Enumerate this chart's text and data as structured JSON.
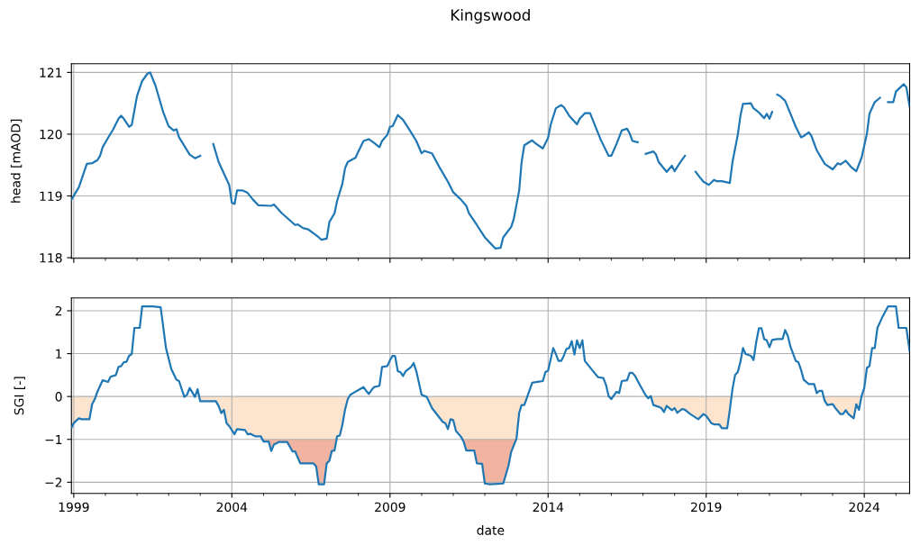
{
  "chart_data": [
    {
      "type": "line",
      "title": "Kingswood",
      "ylabel": "head [mAOD]",
      "grid": true,
      "tick_labels": "y",
      "xlim": [
        "1998-12-05",
        "2025-06-08"
      ],
      "ylim": [
        117.99,
        121.14
      ],
      "yticks": [
        118,
        119,
        120,
        121
      ],
      "series": [
        {
          "color": "#1f77b4",
          "x": [
            "1998-12-05",
            "1999-03",
            "1999-06",
            "1999-08",
            "1999-10",
            "1999-11",
            "1999-12",
            "2000-02",
            "2000-04",
            "2000-06",
            "2000-07",
            "2000-08",
            "2000-10",
            "2000-11",
            "2001-01",
            "2001-03",
            "2001-05",
            "2001-06",
            "2001-08",
            "2001-11",
            "2002-01",
            "2002-03",
            "2002-04",
            "2002-05",
            "2002-09",
            "2002-11",
            "2003-01",
            "2003-03",
            "2003-06",
            "2003-08",
            "2003-12",
            "2004-01",
            "2004-02",
            "2004-03",
            "2004-05",
            "2004-07",
            "2004-09",
            "2004-11",
            "2005-04",
            "2005-05",
            "2005-08",
            "2006-01",
            "2006-02",
            "2006-04",
            "2006-06",
            "2006-10",
            "2006-11",
            "2007-01",
            "2007-02",
            "2007-04",
            "2007-05",
            "2007-07",
            "2007-08",
            "2007-09",
            "2007-12",
            "2008-01",
            "2008-03",
            "2008-05",
            "2008-07",
            "2008-09",
            "2008-10",
            "2008-12",
            "2009-01",
            "2009-02",
            "2009-04",
            "2009-06",
            "2009-09",
            "2009-11",
            "2010-01",
            "2010-02",
            "2010-05",
            "2010-08",
            "2010-11",
            "2011-01",
            "2011-04",
            "2011-06",
            "2011-07",
            "2011-10",
            "2012-01",
            "2012-03",
            "2012-05",
            "2012-07",
            "2012-08",
            "2012-11",
            "2012-12",
            "2013-02",
            "2013-03",
            "2013-04",
            "2013-07",
            "2013-08",
            "2013-11",
            "2014-01",
            "2014-02",
            "2014-04",
            "2014-06",
            "2014-07",
            "2014-09",
            "2014-12",
            "2015-01",
            "2015-03",
            "2015-05",
            "2015-06",
            "2015-09",
            "2015-12",
            "2016-01",
            "2016-03",
            "2016-05",
            "2016-07",
            "2016-08",
            "2016-09",
            "2016-11",
            "2016-12",
            "2017-02",
            "2017-05",
            "2017-06",
            "2017-07",
            "2017-10",
            "2017-12",
            "2018-01",
            "2018-03",
            "2018-05",
            "2018-07",
            "2018-09",
            "2018-11",
            "2018-12",
            "2019-02",
            "2019-04",
            "2019-05",
            "2019-07",
            "2019-10",
            "2019-11",
            "2020-01",
            "2020-02",
            "2020-03",
            "2020-06",
            "2020-07",
            "2020-09",
            "2020-11",
            "2020-12",
            "2021-01",
            "2021-02",
            "2021-03",
            "2021-04",
            "2021-05",
            "2021-07",
            "2021-09",
            "2021-11",
            "2022-01",
            "2022-02",
            "2022-04",
            "2022-05",
            "2022-07",
            "2022-10",
            "2023-01",
            "2023-03",
            "2023-04",
            "2023-06",
            "2023-08",
            "2023-10",
            "2023-12",
            "2024-02",
            "2024-03",
            "2024-05",
            "2024-07",
            "2024-08",
            "2024-10",
            "2024-12",
            "2025-01",
            "2025-04",
            "2025-05",
            "2025-06-08"
          ],
          "values": [
            118.94,
            119.14,
            119.52,
            119.53,
            119.58,
            119.65,
            119.79,
            119.94,
            120.08,
            120.25,
            120.3,
            120.25,
            120.12,
            120.15,
            120.62,
            120.86,
            120.98,
            121.0,
            120.79,
            120.35,
            120.13,
            120.06,
            120.08,
            119.95,
            119.67,
            119.61,
            119.65,
            null,
            119.84,
            119.55,
            119.18,
            118.89,
            118.87,
            119.09,
            119.09,
            119.05,
            118.94,
            118.85,
            118.84,
            118.86,
            118.72,
            118.53,
            118.54,
            118.48,
            118.46,
            118.33,
            118.29,
            118.31,
            118.58,
            118.72,
            118.92,
            119.2,
            119.45,
            119.55,
            119.62,
            119.72,
            119.89,
            119.92,
            119.86,
            119.79,
            119.89,
            119.99,
            120.12,
            120.13,
            120.31,
            120.23,
            120.03,
            119.89,
            119.69,
            119.73,
            119.69,
            119.45,
            119.23,
            119.06,
            118.94,
            118.84,
            118.72,
            118.53,
            118.33,
            118.24,
            118.15,
            118.16,
            118.33,
            118.5,
            118.63,
            119.09,
            119.55,
            119.82,
            119.9,
            119.86,
            119.77,
            119.94,
            120.16,
            120.42,
            120.47,
            120.44,
            120.3,
            120.16,
            120.25,
            120.34,
            120.34,
            120.23,
            119.91,
            119.65,
            119.65,
            119.84,
            120.06,
            120.09,
            120.01,
            119.89,
            119.87,
            null,
            119.68,
            119.72,
            119.67,
            119.55,
            119.39,
            119.49,
            119.4,
            119.53,
            119.65,
            null,
            119.39,
            119.28,
            119.23,
            119.18,
            119.26,
            119.24,
            119.24,
            119.21,
            119.55,
            119.99,
            120.3,
            120.49,
            120.5,
            120.42,
            120.35,
            120.26,
            120.33,
            120.25,
            120.36,
            null,
            120.64,
            120.62,
            120.54,
            120.33,
            120.12,
            119.95,
            119.97,
            120.03,
            119.97,
            119.74,
            119.52,
            119.43,
            119.53,
            119.51,
            119.57,
            119.47,
            119.4,
            119.62,
            120.01,
            120.33,
            120.52,
            120.59,
            null,
            120.52,
            120.52,
            120.69,
            120.81,
            120.76,
            120.45
          ]
        }
      ]
    },
    {
      "type": "line",
      "xlabel": "date",
      "ylabel": "SGI [-]",
      "grid": true,
      "xlim": [
        "1998-12-05",
        "2025-06-08"
      ],
      "ylim": [
        -2.26,
        2.3
      ],
      "yticks": [
        {
          "value": -2,
          "label": "−2"
        },
        {
          "value": -1,
          "label": "−1"
        },
        0,
        1,
        2
      ],
      "xticks": [
        {
          "value": "1999",
          "label": "1999"
        },
        {
          "value": "2000",
          "label": null
        },
        {
          "value": "2001",
          "label": null
        },
        {
          "value": "2002",
          "label": null
        },
        {
          "value": "2003",
          "label": null
        },
        {
          "value": "2004",
          "label": "2004"
        },
        {
          "value": "2005",
          "label": null
        },
        {
          "value": "2006",
          "label": null
        },
        {
          "value": "2007",
          "label": null
        },
        {
          "value": "2008",
          "label": null
        },
        {
          "value": "2009",
          "label": "2009"
        },
        {
          "value": "2010",
          "label": null
        },
        {
          "value": "2011",
          "label": null
        },
        {
          "value": "2012",
          "label": null
        },
        {
          "value": "2013",
          "label": null
        },
        {
          "value": "2014",
          "label": "2014"
        },
        {
          "value": "2015",
          "label": null
        },
        {
          "value": "2016",
          "label": null
        },
        {
          "value": "2017",
          "label": null
        },
        {
          "value": "2018",
          "label": null
        },
        {
          "value": "2019",
          "label": "2019"
        },
        {
          "value": "2020",
          "label": null
        },
        {
          "value": "2021",
          "label": null
        },
        {
          "value": "2022",
          "label": null
        },
        {
          "value": "2023",
          "label": null
        },
        {
          "value": "2024",
          "label": "2024"
        },
        {
          "value": "2025",
          "label": null
        }
      ],
      "series": [
        {
          "color": "#1f77b4",
          "x": [
            "1998-12-05",
            "1999-01",
            "1999-03",
            "1999-04",
            "1999-07",
            "1999-08",
            "1999-09",
            "1999-10",
            "1999-12",
            "2000-02",
            "2000-03",
            "2000-05",
            "2000-06",
            "2000-07",
            "2000-08",
            "2000-09",
            "2000-10",
            "2000-11",
            "2000-12",
            "2001-02",
            "2001-03",
            "2001-07",
            "2001-10",
            "2001-12",
            "2002-02",
            "2002-04",
            "2002-05",
            "2002-07",
            "2002-08",
            "2002-09",
            "2002-11",
            "2002-12",
            "2003-01",
            "2003-07",
            "2003-08",
            "2003-09",
            "2003-10",
            "2003-11",
            "2003-12",
            "2004-02",
            "2004-03",
            "2004-06",
            "2004-07",
            "2004-08",
            "2004-10",
            "2004-12",
            "2005-01",
            "2005-03",
            "2005-04",
            "2005-05",
            "2005-07",
            "2005-10",
            "2005-12",
            "2006-01",
            "2006-03",
            "2006-08",
            "2006-09",
            "2006-10",
            "2006-12",
            "2007-01",
            "2007-02",
            "2007-03",
            "2007-04",
            "2007-05",
            "2007-06",
            "2007-07",
            "2007-08",
            "2007-09",
            "2007-10",
            "2007-11",
            "2008-01",
            "2008-03",
            "2008-04",
            "2008-05",
            "2008-06",
            "2008-07",
            "2008-09",
            "2008-10",
            "2008-12",
            "2009-01",
            "2009-02",
            "2009-03",
            "2009-04",
            "2009-05",
            "2009-06",
            "2009-07",
            "2009-09",
            "2009-10",
            "2009-11",
            "2010-01",
            "2010-03",
            "2010-05",
            "2010-09",
            "2010-10",
            "2010-11",
            "2010-12",
            "2011-01",
            "2011-02",
            "2011-04",
            "2011-05",
            "2011-06",
            "2011-09",
            "2011-10",
            "2011-12",
            "2012-01",
            "2012-03",
            "2012-08",
            "2012-10",
            "2012-11",
            "2013-01",
            "2013-02",
            "2013-03",
            "2013-04",
            "2013-05",
            "2013-07",
            "2013-09",
            "2013-11",
            "2013-12",
            "2014-01",
            "2014-03",
            "2014-04",
            "2014-05",
            "2014-06",
            "2014-07",
            "2014-08",
            "2014-09",
            "2014-10",
            "2014-11",
            "2014-12",
            "2015-01",
            "2015-02",
            "2015-03",
            "2015-06",
            "2015-08",
            "2015-10",
            "2015-11",
            "2015-12",
            "2016-01",
            "2016-03",
            "2016-04",
            "2016-05",
            "2016-07",
            "2016-08",
            "2016-09",
            "2016-10",
            "2016-12",
            "2017-02",
            "2017-03",
            "2017-04",
            "2017-05",
            "2017-07",
            "2017-08",
            "2017-09",
            "2017-10",
            "2017-12",
            "2018-01",
            "2018-02",
            "2018-04",
            "2018-05",
            "2018-07",
            "2018-10",
            "2018-12",
            "2019-01",
            "2019-03",
            "2019-04",
            "2019-06",
            "2019-07",
            "2019-09",
            "2019-10",
            "2019-11",
            "2019-12",
            "2020-01",
            "2020-02",
            "2020-03",
            "2020-04",
            "2020-06",
            "2020-07",
            "2020-08",
            "2020-09",
            "2020-10",
            "2020-11",
            "2020-12",
            "2021-01",
            "2021-02",
            "2021-04",
            "2021-06",
            "2021-07",
            "2021-08",
            "2021-09",
            "2021-11",
            "2021-12",
            "2022-01",
            "2022-02",
            "2022-04",
            "2022-06",
            "2022-07",
            "2022-08",
            "2022-09",
            "2022-10",
            "2022-11",
            "2023-01",
            "2023-02",
            "2023-04",
            "2023-05",
            "2023-06",
            "2023-07",
            "2023-09",
            "2023-10",
            "2023-11",
            "2023-12",
            "2024-01",
            "2024-02",
            "2024-03",
            "2024-04",
            "2024-05",
            "2024-06",
            "2024-07",
            "2024-08",
            "2024-10",
            "2025-01",
            "2025-02",
            "2025-05",
            "2025-06-08"
          ],
          "values": [
            -0.73,
            -0.62,
            -0.51,
            -0.53,
            -0.53,
            -0.18,
            -0.06,
            0.11,
            0.38,
            0.34,
            0.46,
            0.5,
            0.69,
            0.71,
            0.8,
            0.81,
            0.95,
            0.99,
            1.6,
            1.6,
            2.1,
            2.1,
            2.08,
            1.13,
            0.64,
            0.39,
            0.36,
            -0.01,
            0.04,
            0.2,
            -0.01,
            0.17,
            -0.11,
            -0.11,
            -0.22,
            -0.39,
            -0.31,
            -0.62,
            -0.69,
            -0.88,
            -0.76,
            -0.78,
            -0.88,
            -0.87,
            -0.93,
            -0.93,
            -1.05,
            -1.05,
            -1.27,
            -1.12,
            -1.06,
            -1.06,
            -1.28,
            -1.28,
            -1.56,
            -1.56,
            -1.63,
            -2.05,
            -2.05,
            -1.56,
            -1.5,
            -1.27,
            -1.26,
            -0.93,
            -0.91,
            -0.66,
            -0.3,
            -0.06,
            0.04,
            0.08,
            0.15,
            0.22,
            0.13,
            0.06,
            0.15,
            0.22,
            0.25,
            0.69,
            0.71,
            0.85,
            0.95,
            0.94,
            0.59,
            0.57,
            0.48,
            0.59,
            0.69,
            0.78,
            0.59,
            0.04,
            -0.01,
            -0.27,
            -0.59,
            -0.62,
            -0.76,
            -0.53,
            -0.55,
            -0.8,
            -0.94,
            -1.05,
            -1.26,
            -1.26,
            -1.56,
            -1.57,
            -2.03,
            -2.05,
            -2.03,
            -1.61,
            -1.29,
            -0.98,
            -0.38,
            -0.2,
            -0.2,
            -0.03,
            0.32,
            0.34,
            0.36,
            0.57,
            0.6,
            1.13,
            0.99,
            0.83,
            0.83,
            0.95,
            1.11,
            1.13,
            1.29,
            0.98,
            1.31,
            1.13,
            1.31,
            0.83,
            0.6,
            0.45,
            0.43,
            0.27,
            0.01,
            -0.06,
            0.11,
            0.08,
            0.36,
            0.38,
            0.55,
            0.55,
            0.48,
            0.25,
            0.03,
            -0.04,
            0.01,
            -0.2,
            -0.24,
            -0.27,
            -0.36,
            -0.22,
            -0.32,
            -0.27,
            -0.38,
            -0.29,
            -0.31,
            -0.41,
            -0.53,
            -0.41,
            -0.45,
            -0.62,
            -0.65,
            -0.65,
            -0.74,
            -0.74,
            -0.31,
            0.18,
            0.5,
            0.57,
            0.81,
            1.13,
            0.99,
            0.95,
            0.85,
            1.27,
            1.59,
            1.59,
            1.34,
            1.31,
            1.15,
            1.32,
            1.34,
            1.34,
            1.55,
            1.41,
            1.16,
            0.83,
            0.8,
            0.62,
            0.39,
            0.29,
            0.29,
            0.08,
            0.13,
            0.13,
            -0.1,
            -0.2,
            -0.18,
            -0.27,
            -0.41,
            -0.41,
            -0.32,
            -0.41,
            -0.51,
            -0.18,
            -0.31,
            0.01,
            0.2,
            0.67,
            0.71,
            1.13,
            1.13,
            1.6,
            1.73,
            1.87,
            2.1,
            2.1,
            1.6,
            1.6,
            1.06
          ]
        },
        {
          "type": "area",
          "color": "#f3b3a1",
          "x": [
            "2004-12",
            "2005-01",
            "2005-03",
            "2005-04",
            "2005-05",
            "2005-07",
            "2005-10",
            "2005-12",
            "2006-01",
            "2006-03",
            "2006-08",
            "2006-09",
            "2006-10",
            "2006-12",
            "2007-01",
            "2007-02",
            "2007-03",
            "2007-04",
            "2007-05",
            "2009-01",
            "2011-04",
            "2011-05",
            "2011-06",
            "2011-09",
            "2011-10",
            "2011-12",
            "2012-01",
            "2012-03",
            "2012-08",
            "2012-10",
            "2012-11",
            "2013-01"
          ],
          "values": [
            -0.93,
            -1.05,
            -1.05,
            -1.27,
            -1.12,
            -1.06,
            -1.06,
            -1.28,
            -1.28,
            -1.56,
            -1.56,
            -1.63,
            -2.05,
            -2.05,
            -1.56,
            -1.5,
            -1.27,
            -1.26,
            -0.93,
            null,
            -0.94,
            -1.05,
            -1.26,
            -1.26,
            -1.56,
            -1.57,
            -2.03,
            -2.05,
            -2.03,
            -1.61,
            -1.29,
            -0.98
          ]
        },
        {
          "type": "area",
          "color": "#fde4cf",
          "x": [
            "1998-12-05",
            "1999-01",
            "1999-03",
            "1999-04",
            "1999-07",
            "1999-08",
            "1999-09",
            "1999-10",
            "2000-06",
            "2002-12",
            "2003-01",
            "2003-07",
            "2003-08",
            "2003-09",
            "2003-10",
            "2003-11",
            "2003-12",
            "2004-02",
            "2004-03",
            "2004-06",
            "2004-07",
            "2004-08",
            "2004-10",
            "2004-12",
            "2005-01",
            "2007-04",
            "2007-05",
            "2007-06",
            "2007-07",
            "2007-08",
            "2007-09",
            "2007-10",
            "2008-06",
            "2010-01",
            "2010-03",
            "2010-05",
            "2010-09",
            "2010-10",
            "2010-11",
            "2010-12",
            "2011-01",
            "2011-02",
            "2011-04",
            "2011-05",
            "2012-11",
            "2013-01",
            "2013-02",
            "2013-03",
            "2013-04",
            "2013-05",
            "2013-07",
            "2015-01",
            "2017-04",
            "2017-05",
            "2017-07",
            "2017-08",
            "2017-09",
            "2017-10",
            "2017-12",
            "2018-01",
            "2018-02",
            "2018-04",
            "2018-05",
            "2018-07",
            "2018-10",
            "2018-12",
            "2019-01",
            "2019-03",
            "2019-04",
            "2019-06",
            "2019-07",
            "2019-09",
            "2019-10",
            "2019-11",
            "2021-01",
            "2022-09",
            "2022-10",
            "2022-11",
            "2023-01",
            "2023-02",
            "2023-04",
            "2023-05",
            "2023-06",
            "2023-07",
            "2023-09",
            "2023-10",
            "2023-11",
            "2023-12"
          ],
          "values": [
            -0.73,
            -0.62,
            -0.51,
            -0.53,
            -0.53,
            -0.18,
            -0.06,
            0,
            null,
            0,
            -0.11,
            -0.11,
            -0.22,
            -0.39,
            -0.31,
            -0.62,
            -0.69,
            -0.88,
            -0.76,
            -0.78,
            -0.88,
            -0.87,
            -0.93,
            -0.93,
            -1,
            -1,
            -0.93,
            -0.91,
            -0.66,
            -0.3,
            -0.06,
            0,
            null,
            0,
            -0.01,
            -0.27,
            -0.59,
            -0.62,
            -0.76,
            -0.53,
            -0.55,
            -0.8,
            -0.94,
            -1,
            -1,
            -0.98,
            -0.38,
            -0.2,
            -0.2,
            -0.03,
            0,
            null,
            0,
            -0.2,
            -0.24,
            -0.27,
            -0.36,
            -0.22,
            -0.32,
            -0.27,
            -0.38,
            -0.29,
            -0.31,
            -0.41,
            -0.53,
            -0.41,
            -0.45,
            -0.62,
            -0.65,
            -0.65,
            -0.74,
            -0.74,
            -0.31,
            0,
            null,
            0,
            -0.1,
            -0.2,
            -0.18,
            -0.27,
            -0.41,
            -0.41,
            -0.32,
            -0.41,
            -0.51,
            -0.18,
            -0.31,
            0
          ]
        }
      ]
    }
  ]
}
